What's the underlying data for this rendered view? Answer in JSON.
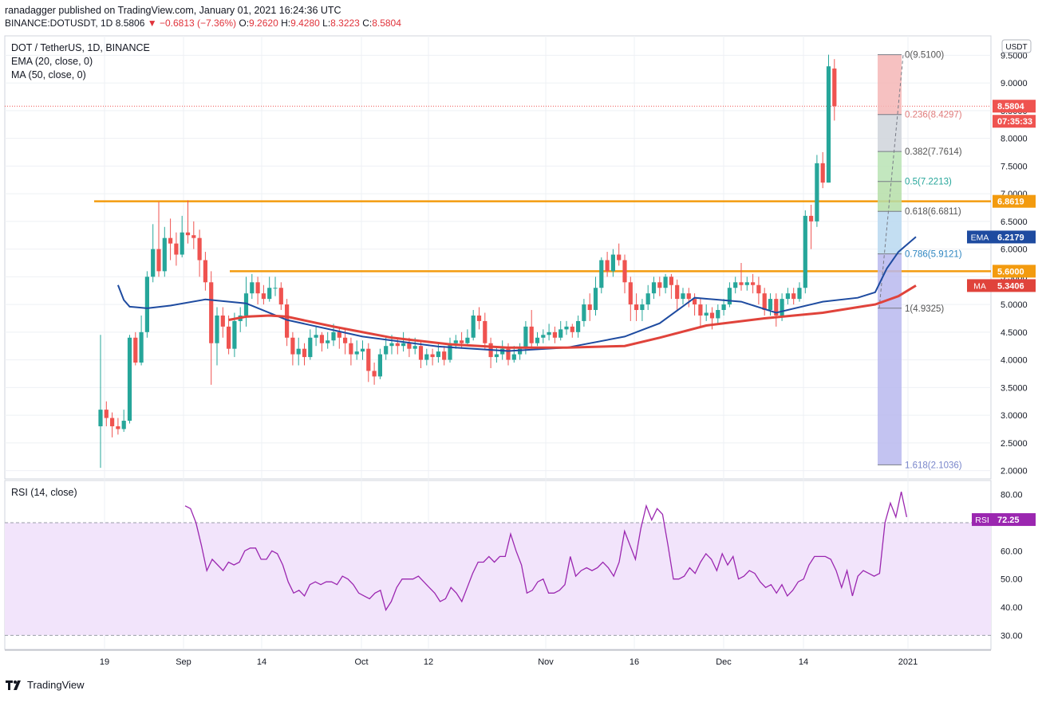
{
  "header": {
    "line1": "ranadagger published on TradingView.com, January 01, 2021 16:24:36 UTC",
    "symbol": "BINANCE:DOTUSDT, 1D",
    "price": "8.5806",
    "change": "▼ −0.6813 (−7.36%)",
    "o_label": "O:",
    "o": "9.2620",
    "h_label": "H:",
    "h": "9.4280",
    "l_label": "L:",
    "l": "8.3223",
    "c_label": "C:",
    "c": "8.5804"
  },
  "legend": {
    "title": "DOT / TetherUS, 1D, BINANCE",
    "ema": "EMA (20, close, 0)",
    "ma": "MA (50, close, 0)",
    "rsi": "RSI (14, close)"
  },
  "footer": {
    "brand": "TradingView"
  },
  "colors": {
    "up": "#26a69a",
    "down": "#ef5350",
    "ema": "#1e4ba0",
    "ma": "#e0433b",
    "level": "#f39b0f",
    "rsi": "#9b27b0",
    "rsi_band": "#f2e4fb",
    "grid": "#eef0f4"
  },
  "chart_data": {
    "type": "candlestick",
    "ylim": [
      1.85,
      9.85
    ],
    "y_ticks": [
      "9.5000",
      "9.0000",
      "8.5000",
      "8.0000",
      "7.5000",
      "7.0000",
      "6.5000",
      "6.0000",
      "5.5000",
      "5.0000",
      "4.5000",
      "4.0000",
      "3.5000",
      "3.0000",
      "2.5000",
      "2.0000"
    ],
    "currency": "USDT",
    "x_ticks": [
      "19",
      "Sep",
      "14",
      "Oct",
      "12",
      "Nov",
      "16",
      "Dec",
      "14",
      "2021"
    ],
    "badges": [
      {
        "label": "8.5804",
        "color": "#ef5350"
      },
      {
        "label": "07:35:33",
        "color": "#ef5350"
      },
      {
        "label": "6.8619",
        "color": "#f39b0f"
      },
      {
        "label": "EMA",
        "value": "6.2179",
        "color": "#1e4ba0"
      },
      {
        "label": "5.6000",
        "color": "#f39b0f"
      },
      {
        "label": "MA",
        "value": "5.3406",
        "color": "#e0433b"
      }
    ],
    "horizontal_levels": [
      6.8619,
      5.6
    ],
    "fibonacci": [
      {
        "label": "0(9.5100)",
        "value": 9.51
      },
      {
        "label": "0.236(8.4297)",
        "value": 8.4297
      },
      {
        "label": "0.382(7.7614)",
        "value": 7.7614
      },
      {
        "label": "0.5(7.2213)",
        "value": 7.2213
      },
      {
        "label": "0.618(6.6811)",
        "value": 6.6811
      },
      {
        "label": "0.786(5.9121)",
        "value": 5.9121
      },
      {
        "label": "1(4.9325)",
        "value": 4.9325
      },
      {
        "label": "1.618(2.1036)",
        "value": 2.1036
      }
    ],
    "candles": [
      [
        2.8,
        3.1,
        4.45,
        2.05
      ],
      [
        3.1,
        2.95,
        3.25,
        2.8
      ],
      [
        2.95,
        2.8,
        3.05,
        2.6
      ],
      [
        2.8,
        2.75,
        2.95,
        2.65
      ],
      [
        2.75,
        2.9,
        3.1,
        2.7
      ],
      [
        2.9,
        4.4,
        4.45,
        2.85
      ],
      [
        4.4,
        3.95,
        4.5,
        3.9
      ],
      [
        3.95,
        4.5,
        4.8,
        3.9
      ],
      [
        4.5,
        5.5,
        5.6,
        4.4
      ],
      [
        5.5,
        6.0,
        6.45,
        5.4
      ],
      [
        6.0,
        5.6,
        6.85,
        5.5
      ],
      [
        5.6,
        6.2,
        6.4,
        5.5
      ],
      [
        6.2,
        6.1,
        6.55,
        5.8
      ],
      [
        6.1,
        5.9,
        6.3,
        5.7
      ],
      [
        5.9,
        6.3,
        6.6,
        5.85
      ],
      [
        6.3,
        6.25,
        6.88,
        6.1
      ],
      [
        6.25,
        6.2,
        6.5,
        6.0
      ],
      [
        6.2,
        5.8,
        6.35,
        5.5
      ],
      [
        5.8,
        5.4,
        5.95,
        5.25
      ],
      [
        5.4,
        4.3,
        5.6,
        3.55
      ],
      [
        4.3,
        4.8,
        4.95,
        3.9
      ],
      [
        4.8,
        4.6,
        4.95,
        4.4
      ],
      [
        4.6,
        4.2,
        4.8,
        4.1
      ],
      [
        4.2,
        4.7,
        4.85,
        4.05
      ],
      [
        4.7,
        4.8,
        4.95,
        4.5
      ],
      [
        4.8,
        5.2,
        5.5,
        4.6
      ],
      [
        5.2,
        5.4,
        5.55,
        5.1
      ],
      [
        5.4,
        5.2,
        5.5,
        5.0
      ],
      [
        5.2,
        5.1,
        5.35,
        5.0
      ],
      [
        5.1,
        5.3,
        5.5,
        5.05
      ],
      [
        5.3,
        5.3,
        5.5,
        5.15
      ],
      [
        5.3,
        5.0,
        5.4,
        4.9
      ],
      [
        5.0,
        4.4,
        5.1,
        4.25
      ],
      [
        4.4,
        4.1,
        4.5,
        3.9
      ],
      [
        4.1,
        4.2,
        4.4,
        3.9
      ],
      [
        4.2,
        4.05,
        4.3,
        3.9
      ],
      [
        4.05,
        4.4,
        4.55,
        4.0
      ],
      [
        4.4,
        4.45,
        4.6,
        4.25
      ],
      [
        4.45,
        4.3,
        4.5,
        4.15
      ],
      [
        4.3,
        4.35,
        4.5,
        4.2
      ],
      [
        4.35,
        4.5,
        4.65,
        4.25
      ],
      [
        4.5,
        4.4,
        4.6,
        4.2
      ],
      [
        4.4,
        4.3,
        4.55,
        4.1
      ],
      [
        4.3,
        4.1,
        4.4,
        3.9
      ],
      [
        4.1,
        4.15,
        4.35,
        4.0
      ],
      [
        4.15,
        4.2,
        4.35,
        4.0
      ],
      [
        4.2,
        3.8,
        4.3,
        3.6
      ],
      [
        3.8,
        3.7,
        3.95,
        3.55
      ],
      [
        3.7,
        4.1,
        4.2,
        3.65
      ],
      [
        4.1,
        4.25,
        4.4,
        4.0
      ],
      [
        4.25,
        4.3,
        4.45,
        4.1
      ],
      [
        4.3,
        4.25,
        4.4,
        4.1
      ],
      [
        4.25,
        4.3,
        4.5,
        4.15
      ],
      [
        4.3,
        4.2,
        4.4,
        4.05
      ],
      [
        4.2,
        4.25,
        4.4,
        4.1
      ],
      [
        4.25,
        4.0,
        4.35,
        3.85
      ],
      [
        4.0,
        4.1,
        4.2,
        3.9
      ],
      [
        4.1,
        4.05,
        4.2,
        3.9
      ],
      [
        4.05,
        4.15,
        4.3,
        3.95
      ],
      [
        4.15,
        4.0,
        4.25,
        3.9
      ],
      [
        4.0,
        4.3,
        4.4,
        3.95
      ],
      [
        4.3,
        4.35,
        4.45,
        4.2
      ],
      [
        4.35,
        4.3,
        4.5,
        4.2
      ],
      [
        4.3,
        4.4,
        4.55,
        4.25
      ],
      [
        4.4,
        4.8,
        4.9,
        4.35
      ],
      [
        4.8,
        4.7,
        4.95,
        4.55
      ],
      [
        4.7,
        4.3,
        4.85,
        4.2
      ],
      [
        4.3,
        4.05,
        4.4,
        3.85
      ],
      [
        4.05,
        4.1,
        4.25,
        3.95
      ],
      [
        4.1,
        4.2,
        4.35,
        4.0
      ],
      [
        4.2,
        4.0,
        4.3,
        3.9
      ],
      [
        4.0,
        4.1,
        4.25,
        3.95
      ],
      [
        4.1,
        4.2,
        4.3,
        4.0
      ],
      [
        4.2,
        4.6,
        4.7,
        4.1
      ],
      [
        4.6,
        4.3,
        4.9,
        4.2
      ],
      [
        4.3,
        4.4,
        4.5,
        4.25
      ],
      [
        4.4,
        4.45,
        4.55,
        4.3
      ],
      [
        4.45,
        4.5,
        4.65,
        4.35
      ],
      [
        4.5,
        4.4,
        4.6,
        4.3
      ],
      [
        4.4,
        4.55,
        4.7,
        4.35
      ],
      [
        4.55,
        4.6,
        4.7,
        4.45
      ],
      [
        4.6,
        4.5,
        4.65,
        4.4
      ],
      [
        4.5,
        4.7,
        4.8,
        4.4
      ],
      [
        4.7,
        5.0,
        5.1,
        4.6
      ],
      [
        5.0,
        4.9,
        5.2,
        4.7
      ],
      [
        4.9,
        5.3,
        5.5,
        4.8
      ],
      [
        5.3,
        5.8,
        5.85,
        5.2
      ],
      [
        5.8,
        5.6,
        5.95,
        5.5
      ],
      [
        5.6,
        5.9,
        6.0,
        5.5
      ],
      [
        5.9,
        5.8,
        6.1,
        5.7
      ],
      [
        5.8,
        5.4,
        5.9,
        5.2
      ],
      [
        5.4,
        5.0,
        5.5,
        4.7
      ],
      [
        5.0,
        4.9,
        5.2,
        4.7
      ],
      [
        4.9,
        5.0,
        5.1,
        4.7
      ],
      [
        5.0,
        5.2,
        5.35,
        4.9
      ],
      [
        5.2,
        5.4,
        5.5,
        5.1
      ],
      [
        5.4,
        5.3,
        5.5,
        5.15
      ],
      [
        5.3,
        5.5,
        5.55,
        5.2
      ],
      [
        5.5,
        5.35,
        5.55,
        5.1
      ],
      [
        5.35,
        5.1,
        5.45,
        4.9
      ],
      [
        5.1,
        5.2,
        5.3,
        5.0
      ],
      [
        5.2,
        5.1,
        5.3,
        4.95
      ],
      [
        5.1,
        5.0,
        5.2,
        4.8
      ],
      [
        5.0,
        4.8,
        5.1,
        4.6
      ],
      [
        4.8,
        4.85,
        5.0,
        4.7
      ],
      [
        4.85,
        4.75,
        4.95,
        4.55
      ],
      [
        4.75,
        4.9,
        5.0,
        4.65
      ],
      [
        4.9,
        5.0,
        5.1,
        4.8
      ],
      [
        5.0,
        5.3,
        5.4,
        4.95
      ],
      [
        5.3,
        5.4,
        5.5,
        5.2
      ],
      [
        5.4,
        5.35,
        5.75,
        5.25
      ],
      [
        5.35,
        5.4,
        5.5,
        5.25
      ],
      [
        5.4,
        5.35,
        5.55,
        5.2
      ],
      [
        5.35,
        5.2,
        5.5,
        5.0
      ],
      [
        5.2,
        4.9,
        5.3,
        4.8
      ],
      [
        4.9,
        5.1,
        5.2,
        4.8
      ],
      [
        5.1,
        4.8,
        5.2,
        4.6
      ],
      [
        4.8,
        5.1,
        5.2,
        4.7
      ],
      [
        5.1,
        5.2,
        5.3,
        5.0
      ],
      [
        5.2,
        5.1,
        5.3,
        5.0
      ],
      [
        5.1,
        5.3,
        5.4,
        5.05
      ],
      [
        5.3,
        6.6,
        6.7,
        5.2
      ],
      [
        6.6,
        6.5,
        6.8,
        6.0
      ],
      [
        6.5,
        7.55,
        7.7,
        6.4
      ],
      [
        7.55,
        7.2,
        7.75,
        7.1
      ],
      [
        7.2,
        9.3,
        9.51,
        7.2
      ],
      [
        9.26,
        8.58,
        9.43,
        8.32
      ]
    ],
    "ema20": [
      [
        3,
        5.35
      ],
      [
        4,
        5.08
      ],
      [
        5,
        4.96
      ],
      [
        6,
        4.95
      ],
      [
        8,
        4.93
      ],
      [
        12,
        4.98
      ],
      [
        18,
        5.09
      ],
      [
        25,
        5.02
      ],
      [
        32,
        4.72
      ],
      [
        45,
        4.42
      ],
      [
        58,
        4.24
      ],
      [
        70,
        4.16
      ],
      [
        80,
        4.22
      ],
      [
        90,
        4.42
      ],
      [
        96,
        4.66
      ],
      [
        102,
        5.12
      ],
      [
        110,
        5.05
      ],
      [
        116,
        4.85
      ],
      [
        124,
        5.05
      ],
      [
        130,
        5.12
      ],
      [
        133,
        5.22
      ],
      [
        135,
        5.65
      ],
      [
        137,
        5.95
      ],
      [
        140,
        6.22
      ]
    ],
    "ma50": [
      [
        22,
        4.72
      ],
      [
        25,
        4.78
      ],
      [
        29,
        4.8
      ],
      [
        32,
        4.78
      ],
      [
        40,
        4.6
      ],
      [
        50,
        4.4
      ],
      [
        60,
        4.28
      ],
      [
        70,
        4.22
      ],
      [
        80,
        4.22
      ],
      [
        90,
        4.25
      ],
      [
        96,
        4.4
      ],
      [
        104,
        4.62
      ],
      [
        114,
        4.75
      ],
      [
        124,
        4.85
      ],
      [
        130,
        4.95
      ],
      [
        133,
        5.0
      ],
      [
        137,
        5.15
      ],
      [
        140,
        5.34
      ]
    ],
    "rsi": {
      "label": "RSI",
      "value": "72.25",
      "ylim": [
        25,
        85
      ],
      "y_ticks": [
        "80.00",
        "70.00",
        "60.00",
        "50.00",
        "40.00",
        "30.00"
      ],
      "band": [
        30,
        70
      ],
      "points": [
        [
          0,
          76
        ],
        [
          1,
          75
        ],
        [
          2,
          70
        ],
        [
          3,
          62
        ],
        [
          4,
          53
        ],
        [
          5,
          57
        ],
        [
          6,
          55
        ],
        [
          7,
          53
        ],
        [
          8,
          56
        ],
        [
          9,
          55
        ],
        [
          10,
          56
        ],
        [
          11,
          60
        ],
        [
          12,
          61
        ],
        [
          13,
          61
        ],
        [
          14,
          57
        ],
        [
          15,
          57
        ],
        [
          16,
          60
        ],
        [
          17,
          59
        ],
        [
          18,
          55
        ],
        [
          19,
          49
        ],
        [
          20,
          45
        ],
        [
          21,
          46
        ],
        [
          22,
          44
        ],
        [
          23,
          48
        ],
        [
          24,
          49
        ],
        [
          25,
          48
        ],
        [
          26,
          49
        ],
        [
          27,
          49
        ],
        [
          28,
          48
        ],
        [
          29,
          51
        ],
        [
          30,
          50
        ],
        [
          31,
          48
        ],
        [
          32,
          45
        ],
        [
          33,
          44
        ],
        [
          34,
          43
        ],
        [
          35,
          45
        ],
        [
          36,
          46
        ],
        [
          37,
          39
        ],
        [
          38,
          42
        ],
        [
          39,
          47
        ],
        [
          40,
          50
        ],
        [
          41,
          50
        ],
        [
          42,
          50
        ],
        [
          43,
          51
        ],
        [
          44,
          49
        ],
        [
          45,
          47
        ],
        [
          46,
          45
        ],
        [
          47,
          42
        ],
        [
          48,
          43
        ],
        [
          49,
          47
        ],
        [
          50,
          45
        ],
        [
          51,
          42
        ],
        [
          52,
          47
        ],
        [
          53,
          52
        ],
        [
          54,
          56
        ],
        [
          55,
          56
        ],
        [
          56,
          58
        ],
        [
          57,
          56
        ],
        [
          58,
          58
        ],
        [
          59,
          58
        ],
        [
          60,
          66
        ],
        [
          61,
          60
        ],
        [
          62,
          55
        ],
        [
          63,
          45
        ],
        [
          64,
          46
        ],
        [
          65,
          49
        ],
        [
          66,
          50
        ],
        [
          67,
          45
        ],
        [
          68,
          45
        ],
        [
          69,
          46
        ],
        [
          70,
          48
        ],
        [
          71,
          58
        ],
        [
          72,
          51
        ],
        [
          73,
          53
        ],
        [
          74,
          54
        ],
        [
          75,
          53
        ],
        [
          76,
          54
        ],
        [
          77,
          56
        ],
        [
          78,
          54
        ],
        [
          79,
          51
        ],
        [
          80,
          56
        ],
        [
          81,
          67
        ],
        [
          82,
          62
        ],
        [
          83,
          57
        ],
        [
          84,
          68
        ],
        [
          85,
          76
        ],
        [
          86,
          71
        ],
        [
          87,
          75
        ],
        [
          88,
          73
        ],
        [
          89,
          62
        ],
        [
          90,
          50
        ],
        [
          91,
          50
        ],
        [
          92,
          51
        ],
        [
          93,
          54
        ],
        [
          94,
          52
        ],
        [
          95,
          56
        ],
        [
          96,
          59
        ],
        [
          97,
          57
        ],
        [
          98,
          53
        ],
        [
          99,
          59
        ],
        [
          100,
          55
        ],
        [
          101,
          58
        ],
        [
          102,
          50
        ],
        [
          103,
          51
        ],
        [
          104,
          53
        ],
        [
          105,
          52
        ],
        [
          106,
          49
        ],
        [
          107,
          47
        ],
        [
          108,
          48
        ],
        [
          109,
          45
        ],
        [
          110,
          48
        ],
        [
          111,
          44
        ],
        [
          112,
          46
        ],
        [
          113,
          49
        ],
        [
          114,
          50
        ],
        [
          115,
          55
        ],
        [
          116,
          58
        ],
        [
          117,
          58
        ],
        [
          118,
          58
        ],
        [
          119,
          57
        ],
        [
          120,
          53
        ],
        [
          121,
          47
        ],
        [
          122,
          53
        ],
        [
          123,
          44
        ],
        [
          124,
          51
        ],
        [
          125,
          53
        ],
        [
          126,
          52
        ],
        [
          127,
          51
        ],
        [
          128,
          52
        ],
        [
          129,
          70
        ],
        [
          130,
          77
        ],
        [
          131,
          72
        ],
        [
          132,
          81
        ],
        [
          133,
          72
        ]
      ]
    }
  }
}
